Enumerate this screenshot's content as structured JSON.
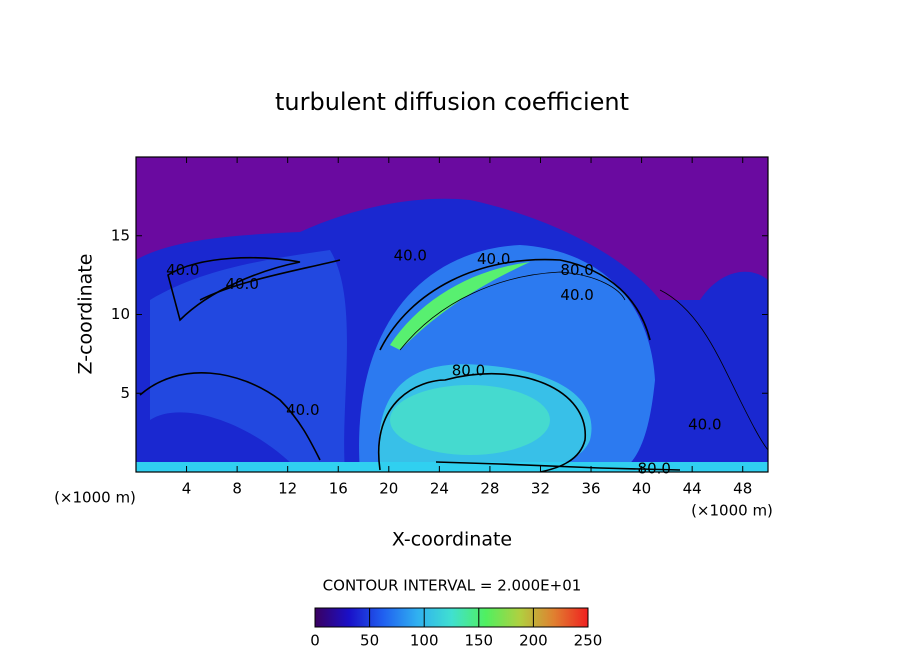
{
  "chart_data": {
    "type": "contour",
    "title": "turbulent diffusion coefficient",
    "x_label": "X-coordinate",
    "y_label": "Z-coordinate",
    "x_unit_left": "(×1000 m)",
    "x_unit_right": "(×1000 m)",
    "xlim": [
      0,
      50
    ],
    "ylim": [
      0,
      20
    ],
    "xticks": [
      4,
      8,
      12,
      16,
      20,
      24,
      28,
      32,
      36,
      40,
      44,
      48
    ],
    "yticks": [
      5,
      10,
      15
    ],
    "contour_interval": "CONTOUR INTERVAL = 2.000E+01",
    "contour_labels": [
      {
        "text": "40.0",
        "x": 3.7,
        "y": 12.8
      },
      {
        "text": "40.0",
        "x": 8.4,
        "y": 11.9
      },
      {
        "text": "40.0",
        "x": 21.7,
        "y": 13.7
      },
      {
        "text": "40.0",
        "x": 28.3,
        "y": 13.5
      },
      {
        "text": "80.0",
        "x": 34.9,
        "y": 12.8
      },
      {
        "text": "40.0",
        "x": 34.9,
        "y": 11.2
      },
      {
        "text": "80.0",
        "x": 26.3,
        "y": 6.4
      },
      {
        "text": "40.0",
        "x": 13.2,
        "y": 3.9
      },
      {
        "text": "40.0",
        "x": 45.0,
        "y": 3.0
      },
      {
        "text": "80.0",
        "x": 41.0,
        "y": 0.2
      }
    ],
    "colorbar": {
      "clim": [
        0,
        250
      ],
      "ticks": [
        0,
        50,
        100,
        150,
        200,
        250
      ],
      "colormap": [
        "#3a0060",
        "#1a10c8",
        "#2060f0",
        "#30b0f0",
        "#40e0d0",
        "#50f060",
        "#b0d040",
        "#e08030",
        "#f02020"
      ]
    }
  }
}
